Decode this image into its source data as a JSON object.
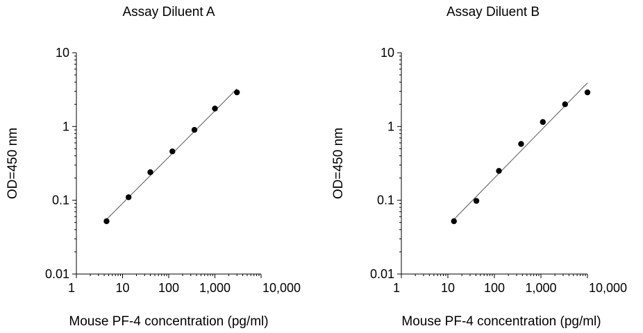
{
  "chart_data": [
    {
      "type": "scatter",
      "title": "Assay Diluent A",
      "xlabel": "Mouse PF-4 concentration (pg/ml)",
      "ylabel": "OD=450 nm",
      "xscale": "log",
      "yscale": "log",
      "xlim": [
        1,
        10000
      ],
      "ylim": [
        0.01,
        10
      ],
      "xticks": [
        1,
        10,
        100,
        1000,
        10000
      ],
      "xtick_labels": [
        "1",
        "10",
        "100",
        "1,000",
        "10,000"
      ],
      "yticks": [
        0.01,
        0.1,
        1,
        10
      ],
      "ytick_labels": [
        "0.01",
        "0.1",
        "1",
        "10"
      ],
      "series": [
        {
          "x": [
            4.5,
            13.5,
            40,
            120,
            360,
            1000,
            3000
          ],
          "y": [
            0.052,
            0.11,
            0.24,
            0.46,
            0.9,
            1.75,
            2.9
          ]
        }
      ],
      "fit_line": {
        "x": [
          4.5,
          3000
        ],
        "y": [
          0.055,
          3.25
        ]
      },
      "colors": {
        "points": "#000000",
        "line": "#555555"
      },
      "grid": false
    },
    {
      "type": "scatter",
      "title": "Assay Diluent B",
      "xlabel": "Mouse PF-4 concentration (pg/ml)",
      "ylabel": "OD=450 nm",
      "xscale": "log",
      "yscale": "log",
      "xlim": [
        1,
        10000
      ],
      "ylim": [
        0.01,
        10
      ],
      "xticks": [
        1,
        10,
        100,
        1000,
        10000
      ],
      "xtick_labels": [
        "1",
        "10",
        "100",
        "1,000",
        "10,000"
      ],
      "yticks": [
        0.01,
        0.1,
        1,
        10
      ],
      "ytick_labels": [
        "0.01",
        "0.1",
        "1",
        "10"
      ],
      "series": [
        {
          "x": [
            13.5,
            41,
            125,
            375,
            1100,
            3300,
            10000
          ],
          "y": [
            0.052,
            0.098,
            0.25,
            0.58,
            1.15,
            2.0,
            2.9
          ]
        }
      ],
      "fit_line": {
        "x": [
          13.5,
          10000
        ],
        "y": [
          0.055,
          3.9
        ]
      },
      "colors": {
        "points": "#000000",
        "line": "#555555"
      },
      "grid": false
    }
  ]
}
